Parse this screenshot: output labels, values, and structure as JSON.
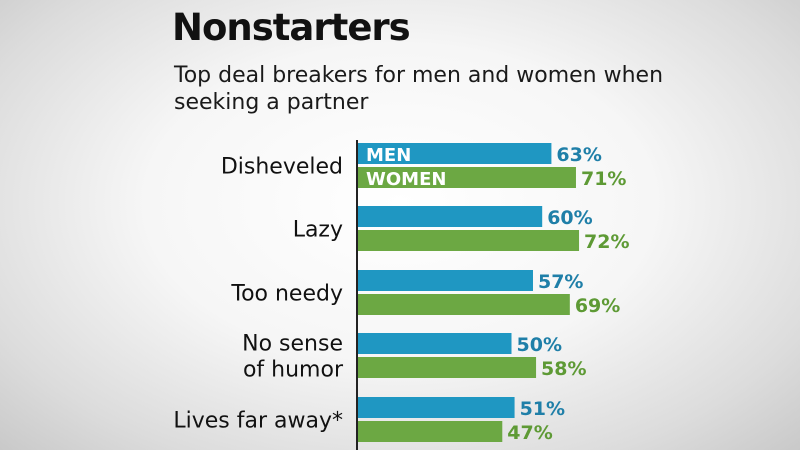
{
  "chart_data": {
    "type": "bar",
    "orientation": "horizontal",
    "title": "Nonstarters",
    "subtitle": "Top deal breakers for men and women when seeking a partner",
    "categories": [
      [
        "Disheveled"
      ],
      [
        "Lazy"
      ],
      [
        "Too needy"
      ],
      [
        "No sense",
        "of humor"
      ],
      [
        "Lives far away*"
      ]
    ],
    "series": [
      {
        "name": "MEN",
        "values": [
          63,
          60,
          57,
          50,
          51
        ],
        "labels": [
          "63%",
          "60%",
          "57%",
          "50%",
          "51%"
        ],
        "color": "#1f97c2",
        "label_color": "#1f7fa8"
      },
      {
        "name": "WOMEN",
        "values": [
          71,
          72,
          69,
          58,
          47
        ],
        "labels": [
          "71%",
          "72%",
          "69%",
          "58%",
          "47%"
        ],
        "color": "#6ca843",
        "label_color": "#5e9a35"
      }
    ],
    "unit": "%",
    "legend": "inside first bars",
    "grid": false
  }
}
